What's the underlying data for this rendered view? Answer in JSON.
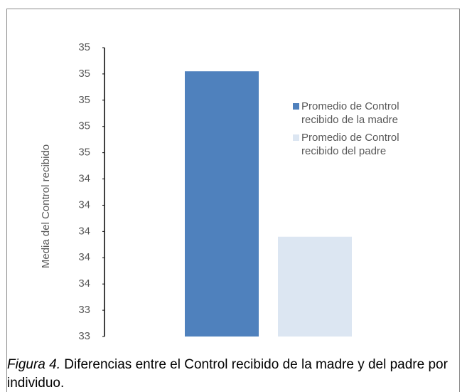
{
  "chart_data": {
    "type": "bar",
    "y_label": "Media del Control recibido",
    "categories": [
      null
    ],
    "series": [
      {
        "name": "Promedio de Control recibido de la madre",
        "color": "#4f81bd",
        "values": [
          35.22
        ]
      },
      {
        "name": "Promedio de Control recibido del padre",
        "color": "#dce6f2",
        "values": [
          33.96
        ]
      }
    ],
    "ylim": [
      33.2,
      35.4
    ],
    "yticks": [
      {
        "value": 33.2,
        "label": "33"
      },
      {
        "value": 33.4,
        "label": "33"
      },
      {
        "value": 33.6,
        "label": "34"
      },
      {
        "value": 33.8,
        "label": "34"
      },
      {
        "value": 34.0,
        "label": "34"
      },
      {
        "value": 34.2,
        "label": "34"
      },
      {
        "value": 34.4,
        "label": "34"
      },
      {
        "value": 34.6,
        "label": "35"
      },
      {
        "value": 34.8,
        "label": "35"
      },
      {
        "value": 35.0,
        "label": "35"
      },
      {
        "value": 35.2,
        "label": "35"
      },
      {
        "value": 35.4,
        "label": "35"
      }
    ],
    "legend_position": "right",
    "grid": false
  },
  "caption": {
    "label": "Figura 4.",
    "text": "Diferencias entre el Control recibido de la madre y del padre por individuo."
  }
}
